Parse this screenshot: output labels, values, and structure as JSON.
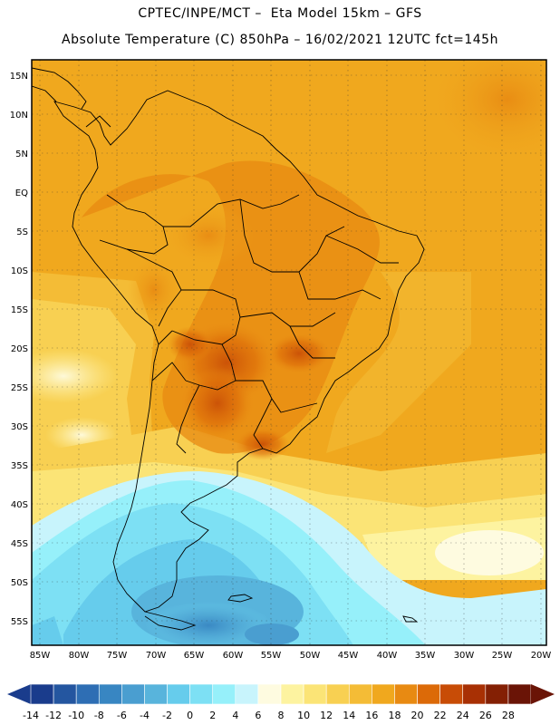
{
  "header": {
    "line1": "CPTEC/INPE/MCT –  Eta Model 15km – GFS",
    "line2": "Absolute Temperature (C) 850hPa – 16/02/2021 12UTC fct=145h"
  },
  "map": {
    "lat_labels": [
      "15N",
      "10N",
      "5N",
      "EQ",
      "5S",
      "10S",
      "15S",
      "20S",
      "25S",
      "30S",
      "35S",
      "40S",
      "45S",
      "50S",
      "55S"
    ],
    "lon_labels": [
      "85W",
      "80W",
      "75W",
      "70W",
      "65W",
      "60W",
      "55W",
      "50W",
      "45W",
      "40W",
      "35W",
      "30W",
      "25W",
      "20W"
    ]
  },
  "colorbar": {
    "labels": [
      "-14",
      "-12",
      "-10",
      "-8",
      "-6",
      "-4",
      "-2",
      "0",
      "2",
      "4",
      "6",
      "8",
      "10",
      "12",
      "14",
      "16",
      "18",
      "20",
      "22",
      "24",
      "26",
      "28"
    ],
    "colors": [
      "#1a3c8c",
      "#2456a0",
      "#2e6eb4",
      "#3886c2",
      "#4a9ed0",
      "#58b4dc",
      "#66ccec",
      "#7de0f4",
      "#96f0fa",
      "#c8f4fc",
      "#fefbe0",
      "#fdf3a0",
      "#fbe476",
      "#f8d052",
      "#f4bc36",
      "#f0a81e",
      "#e88a12",
      "#dc6a08",
      "#c84c06",
      "#a83004",
      "#842004",
      "#6a1406"
    ]
  }
}
